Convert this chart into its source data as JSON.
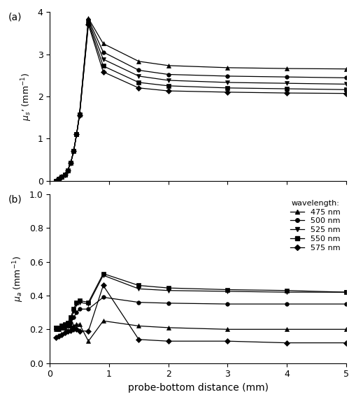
{
  "panel_a": {
    "ylabel": "$\\mu_s$’ (mm$^{-1}$)",
    "ylim": [
      0,
      4
    ],
    "yticks": [
      0,
      1,
      2,
      3,
      4
    ],
    "series": {
      "475nm": {
        "x": [
          0.1,
          0.15,
          0.2,
          0.25,
          0.3,
          0.35,
          0.4,
          0.45,
          0.5,
          0.65,
          0.9,
          1.5,
          2.0,
          3.0,
          4.0,
          5.0
        ],
        "y": [
          0.0,
          0.05,
          0.1,
          0.15,
          0.25,
          0.42,
          0.7,
          1.1,
          1.6,
          3.85,
          3.25,
          2.83,
          2.73,
          2.68,
          2.66,
          2.65
        ],
        "marker": "^",
        "label": "475 nm"
      },
      "500nm": {
        "x": [
          0.1,
          0.15,
          0.2,
          0.25,
          0.3,
          0.35,
          0.4,
          0.45,
          0.5,
          0.65,
          0.9,
          1.5,
          2.0,
          3.0,
          4.0,
          5.0
        ],
        "y": [
          0.0,
          0.05,
          0.1,
          0.15,
          0.25,
          0.42,
          0.7,
          1.1,
          1.58,
          3.82,
          3.05,
          2.62,
          2.52,
          2.48,
          2.46,
          2.44
        ],
        "marker": "o",
        "label": "500 nm"
      },
      "525nm": {
        "x": [
          0.1,
          0.15,
          0.2,
          0.25,
          0.3,
          0.35,
          0.4,
          0.45,
          0.5,
          0.65,
          0.9,
          1.5,
          2.0,
          3.0,
          4.0,
          5.0
        ],
        "y": [
          0.0,
          0.05,
          0.1,
          0.15,
          0.25,
          0.42,
          0.7,
          1.1,
          1.57,
          3.78,
          2.88,
          2.48,
          2.38,
          2.33,
          2.31,
          2.29
        ],
        "marker": "v",
        "label": "525 nm"
      },
      "550nm": {
        "x": [
          0.1,
          0.15,
          0.2,
          0.25,
          0.3,
          0.35,
          0.4,
          0.45,
          0.5,
          0.65,
          0.9,
          1.5,
          2.0,
          3.0,
          4.0,
          5.0
        ],
        "y": [
          0.0,
          0.05,
          0.1,
          0.15,
          0.25,
          0.42,
          0.7,
          1.1,
          1.56,
          3.74,
          2.72,
          2.33,
          2.25,
          2.2,
          2.18,
          2.16
        ],
        "marker": "s",
        "label": "550 nm"
      },
      "575nm": {
        "x": [
          0.1,
          0.15,
          0.2,
          0.25,
          0.3,
          0.35,
          0.4,
          0.45,
          0.5,
          0.65,
          0.9,
          1.5,
          2.0,
          3.0,
          4.0,
          5.0
        ],
        "y": [
          0.0,
          0.05,
          0.1,
          0.15,
          0.25,
          0.42,
          0.7,
          1.1,
          1.55,
          3.7,
          2.58,
          2.2,
          2.13,
          2.1,
          2.08,
          2.07
        ],
        "marker": "D",
        "label": "575 nm"
      }
    }
  },
  "panel_b": {
    "ylabel": "$\\mu_a$ (mm$^{-1}$)",
    "ylim": [
      0.0,
      1.0
    ],
    "yticks": [
      0.0,
      0.2,
      0.4,
      0.6,
      0.8,
      1.0
    ],
    "series": {
      "475nm": {
        "x": [
          0.1,
          0.15,
          0.2,
          0.25,
          0.3,
          0.35,
          0.4,
          0.45,
          0.5,
          0.65,
          0.9,
          1.5,
          2.0,
          3.0,
          4.0,
          5.0
        ],
        "y": [
          0.2,
          0.2,
          0.21,
          0.21,
          0.22,
          0.22,
          0.22,
          0.23,
          0.23,
          0.13,
          0.25,
          0.22,
          0.21,
          0.2,
          0.2,
          0.2
        ],
        "marker": "^",
        "label": "475 nm"
      },
      "500nm": {
        "x": [
          0.1,
          0.15,
          0.2,
          0.25,
          0.3,
          0.35,
          0.4,
          0.45,
          0.5,
          0.65,
          0.9,
          1.5,
          2.0,
          3.0,
          4.0,
          5.0
        ],
        "y": [
          0.2,
          0.2,
          0.21,
          0.22,
          0.23,
          0.24,
          0.27,
          0.3,
          0.32,
          0.32,
          0.39,
          0.36,
          0.355,
          0.35,
          0.35,
          0.35
        ],
        "marker": "o",
        "label": "500 nm"
      },
      "525nm": {
        "x": [
          0.1,
          0.15,
          0.2,
          0.25,
          0.3,
          0.35,
          0.4,
          0.45,
          0.5,
          0.65,
          0.9,
          1.5,
          2.0,
          3.0,
          4.0,
          5.0
        ],
        "y": [
          0.21,
          0.21,
          0.22,
          0.225,
          0.235,
          0.25,
          0.31,
          0.35,
          0.36,
          0.35,
          0.52,
          0.44,
          0.43,
          0.425,
          0.42,
          0.42
        ],
        "marker": "v",
        "label": "525 nm"
      },
      "550nm": {
        "x": [
          0.1,
          0.15,
          0.2,
          0.25,
          0.3,
          0.35,
          0.4,
          0.45,
          0.5,
          0.65,
          0.9,
          1.5,
          2.0,
          3.0,
          4.0,
          5.0
        ],
        "y": [
          0.21,
          0.21,
          0.22,
          0.23,
          0.24,
          0.27,
          0.32,
          0.36,
          0.37,
          0.36,
          0.53,
          0.46,
          0.445,
          0.435,
          0.43,
          0.42
        ],
        "marker": "s",
        "label": "550 nm"
      },
      "575nm": {
        "x": [
          0.1,
          0.15,
          0.2,
          0.25,
          0.3,
          0.35,
          0.4,
          0.45,
          0.5,
          0.65,
          0.9,
          1.5,
          2.0,
          3.0,
          4.0,
          5.0
        ],
        "y": [
          0.15,
          0.16,
          0.17,
          0.18,
          0.19,
          0.195,
          0.2,
          0.2,
          0.19,
          0.19,
          0.46,
          0.14,
          0.13,
          0.13,
          0.12,
          0.12
        ],
        "marker": "D",
        "label": "575 nm"
      }
    }
  },
  "xlabel": "probe-bottom distance (mm)",
  "xlim": [
    0,
    5
  ],
  "xticks": [
    0,
    1,
    2,
    3,
    4,
    5
  ],
  "color": "black",
  "linewidth": 0.9,
  "markersize": 4,
  "series_keys": [
    "475nm",
    "500nm",
    "525nm",
    "550nm",
    "575nm"
  ]
}
